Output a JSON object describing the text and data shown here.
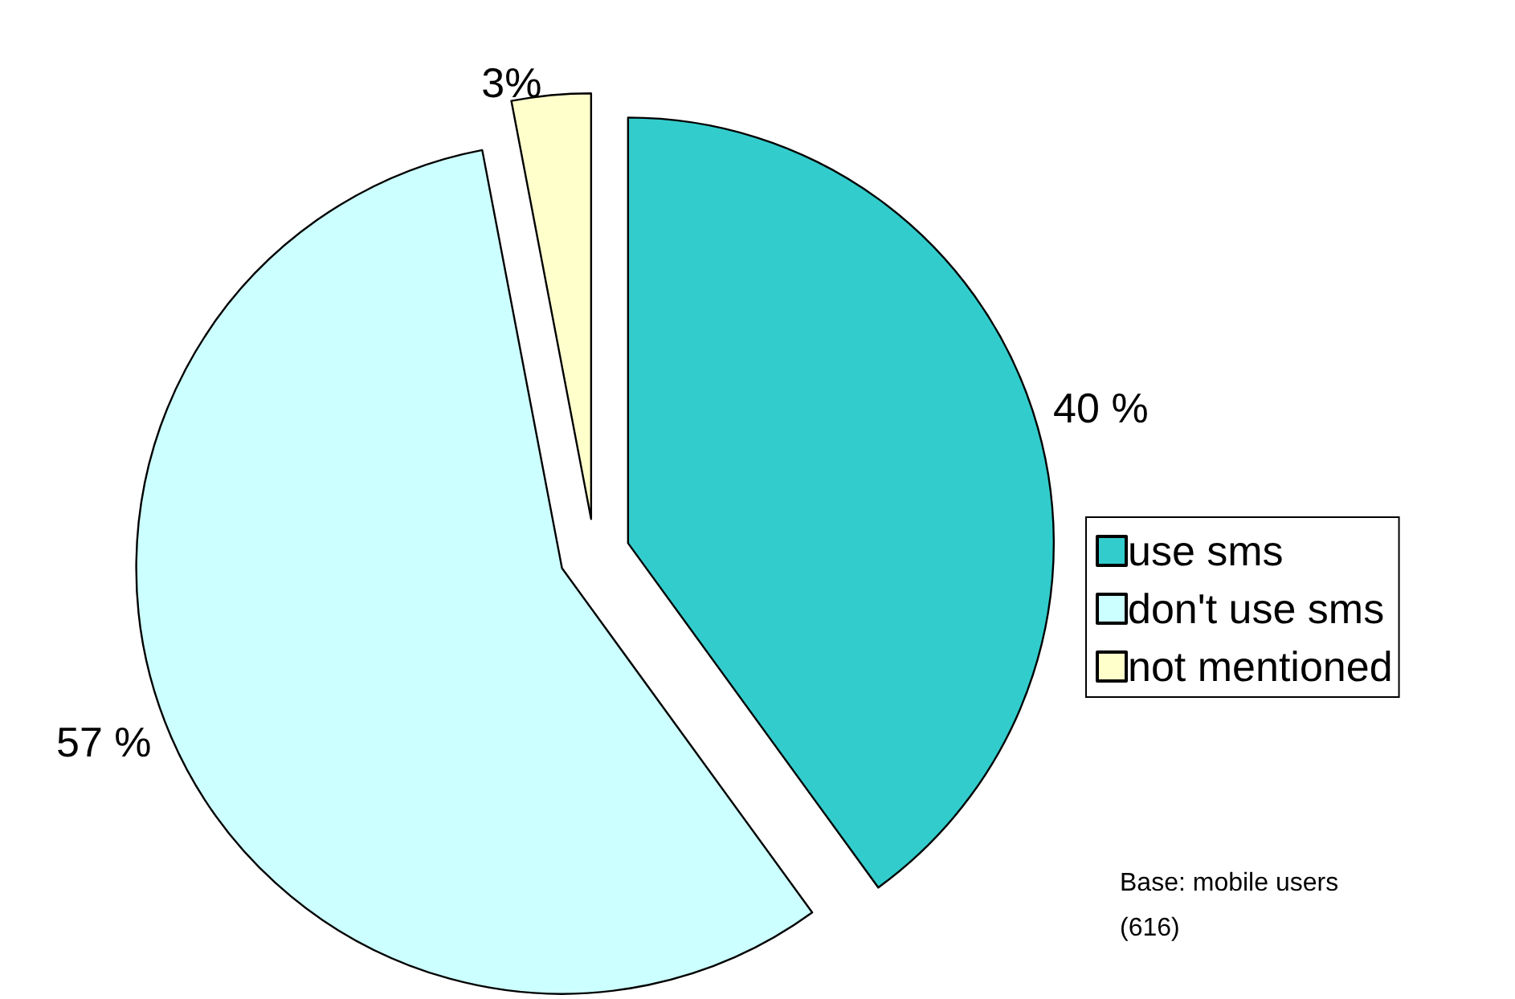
{
  "chart_data": {
    "type": "pie",
    "categories": [
      "use sms",
      "don't use sms",
      "not mentioned"
    ],
    "values": [
      40,
      57,
      3
    ],
    "value_labels": [
      "40 %",
      "57 %",
      "3%"
    ],
    "colors": [
      "#33cccc",
      "#ccffff",
      "#ffffcc"
    ],
    "legend": "right",
    "annotations": [
      "Base: mobile users (616)"
    ]
  }
}
